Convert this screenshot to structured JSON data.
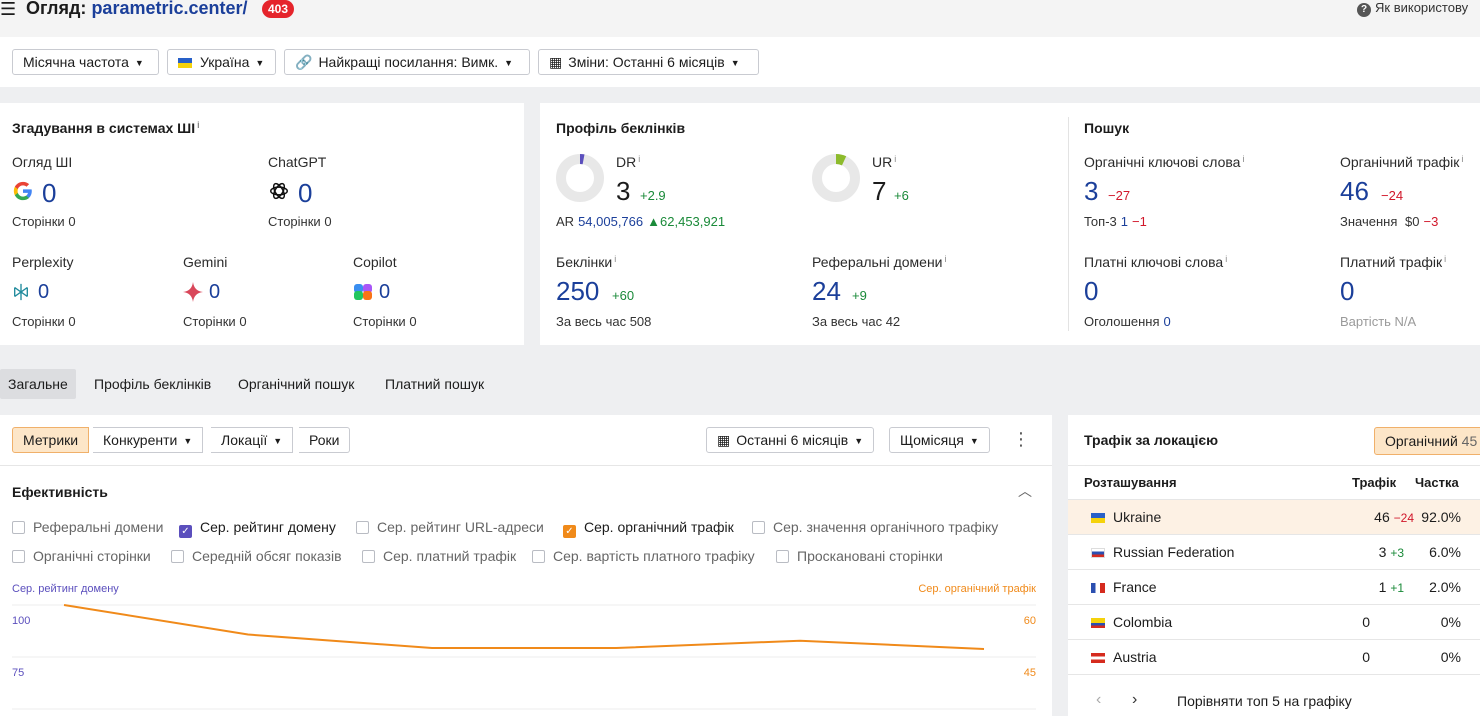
{
  "header": {
    "title_prefix": "Огляд:",
    "domain": "parametric.center/",
    "badge": "403",
    "help": "Як використову"
  },
  "filters": {
    "frequency": "Місячна частота",
    "country": "Україна",
    "best_links": "Найкращі посилання: Вимк.",
    "changes": "Зміни: Останні 6 місяців"
  },
  "ai_card": {
    "title": "Згадування в системах ШІ",
    "items": [
      {
        "name": "Огляд ШІ",
        "value": "0",
        "pages_label": "Сторінки",
        "pages": "0",
        "icon": "google-icon"
      },
      {
        "name": "ChatGPT",
        "value": "0",
        "pages_label": "Сторінки",
        "pages": "0",
        "icon": "chatgpt-icon"
      },
      {
        "name": "Perplexity",
        "value": "0",
        "pages_label": "Сторінки",
        "pages": "0",
        "icon": "perplexity-icon"
      },
      {
        "name": "Gemini",
        "value": "0",
        "pages_label": "Сторінки",
        "pages": "0",
        "icon": "gemini-icon"
      },
      {
        "name": "Copilot",
        "value": "0",
        "pages_label": "Сторінки",
        "pages": "0",
        "icon": "copilot-icon"
      }
    ]
  },
  "backlinks_card": {
    "title": "Профіль беклінків",
    "dr": {
      "label": "DR",
      "value": "3",
      "delta": "+2.9",
      "fraction": 0.03
    },
    "ur": {
      "label": "UR",
      "value": "7",
      "delta": "+6",
      "fraction": 0.07
    },
    "ar": {
      "label": "AR",
      "value": "54,005,766",
      "delta": "62,453,921"
    },
    "backlinks": {
      "label": "Беклінки",
      "value": "250",
      "delta": "+60",
      "sub_label": "За весь час",
      "sub_value": "508"
    },
    "ref_domains": {
      "label": "Реферальні домени",
      "value": "24",
      "delta": "+9",
      "sub_label": "За весь час",
      "sub_value": "42"
    }
  },
  "search_card": {
    "title": "Пошук",
    "organic_keywords": {
      "label": "Органічні ключові слова",
      "value": "3",
      "delta": "−27",
      "sub_label": "Топ-3",
      "sub_value": "1",
      "sub_delta": "−1"
    },
    "organic_traffic": {
      "label": "Органічний трафік",
      "value": "46",
      "delta": "−24",
      "sub_label": "Значення",
      "sub_value": "$0",
      "sub_delta": "−3"
    },
    "paid_keywords": {
      "label": "Платні ключові слова",
      "value": "0",
      "sub_label": "Оголошення",
      "sub_value": "0"
    },
    "paid_traffic": {
      "label": "Платний трафік",
      "value": "0",
      "sub_label": "Вартість",
      "sub_value": "N/A"
    }
  },
  "tabs": [
    "Загальне",
    "Профіль беклінків",
    "Органічний пошук",
    "Платний пошук"
  ],
  "performance": {
    "segments": [
      "Метрики",
      "Конкуренти",
      "Локації",
      "Роки"
    ],
    "period": "Останні 6 місяців",
    "granularity": "Щомісяця",
    "title": "Ефективність",
    "checkboxes_row1": [
      {
        "label": "Реферальні домени",
        "checked": false
      },
      {
        "label": "Сер. рейтинг домену",
        "checked": true,
        "color": "#5b4fbd"
      },
      {
        "label": "Сер. рейтинг URL-адреси",
        "checked": false
      },
      {
        "label": "Сер. органічний трафік",
        "checked": true,
        "color": "#f08a1a"
      },
      {
        "label": "Сер. значення органічного трафіку",
        "checked": false
      }
    ],
    "checkboxes_row2": [
      {
        "label": "Органічні сторінки",
        "checked": false
      },
      {
        "label": "Середній обсяг показів",
        "checked": false
      },
      {
        "label": "Сер. платний трафік",
        "checked": false
      },
      {
        "label": "Сер. вартість платного трафіку",
        "checked": false
      },
      {
        "label": "Проскановані сторінки",
        "checked": false
      }
    ]
  },
  "chart_data": {
    "type": "line",
    "left_axis_label": "Сер. рейтинг домену",
    "right_axis_label": "Сер. органічний трафік",
    "left_ticks": [
      "100",
      "75"
    ],
    "right_ticks": [
      "60",
      "45"
    ],
    "right_ylim": [
      30,
      60
    ],
    "series": [
      {
        "name": "Сер. органічний трафік",
        "color": "#f08a1a",
        "axis": "right",
        "values": [
          60,
          51.5,
          47.6,
          47.6,
          49.7,
          47.3
        ]
      }
    ]
  },
  "traffic_by_location": {
    "title": "Трафік за локацією",
    "toggle": "Органічний",
    "toggle_count": "45",
    "columns": {
      "location": "Розташування",
      "traffic": "Трафік",
      "share": "Частка"
    },
    "rows": [
      {
        "country": "Ukraine",
        "flag": "ua",
        "traffic": "46",
        "delta": "−24",
        "delta_type": "neg",
        "share": "92.0%"
      },
      {
        "country": "Russian Federation",
        "flag": "ru",
        "traffic": "3",
        "delta": "+3",
        "delta_type": "pos",
        "share": "6.0%"
      },
      {
        "country": "France",
        "flag": "fr",
        "traffic": "1",
        "delta": "+1",
        "delta_type": "pos",
        "share": "2.0%"
      },
      {
        "country": "Colombia",
        "flag": "co",
        "traffic": "0",
        "delta": "",
        "delta_type": "",
        "share": "0%"
      },
      {
        "country": "Austria",
        "flag": "at",
        "traffic": "0",
        "delta": "",
        "delta_type": "",
        "share": "0%"
      }
    ],
    "compare": "Порівняти топ 5 на графіку"
  }
}
